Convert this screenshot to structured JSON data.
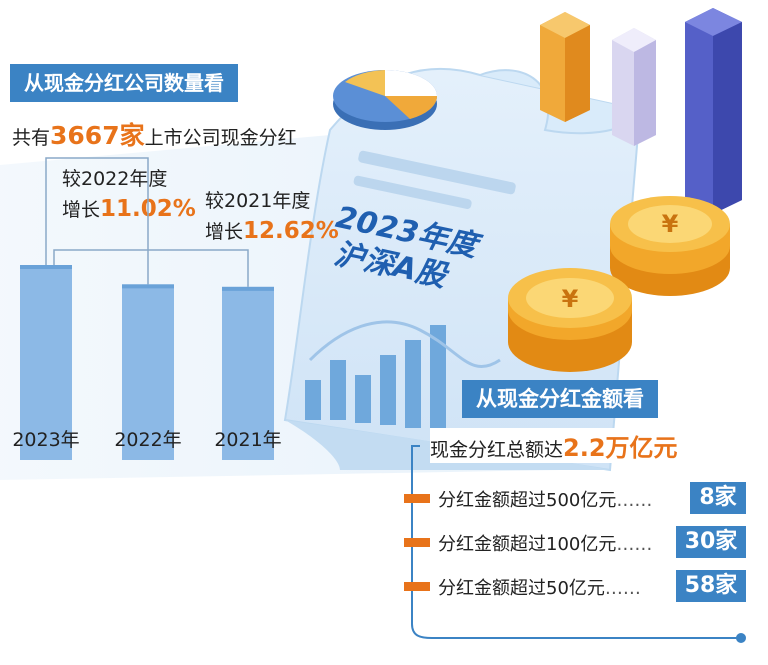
{
  "section1": {
    "title": "从现金分红公司数量看",
    "count_prefix": "共有",
    "count_value": "3667家",
    "count_suffix": "上市公司现金分红",
    "compare_2022_line1": "较2022年度",
    "compare_2022_prefix": "增长",
    "compare_2022_value": "11.02%",
    "compare_2021_line1": "较2021年度",
    "compare_2021_prefix": "增长",
    "compare_2021_value": "12.62%"
  },
  "center": {
    "line1": "2023年度",
    "line2": "沪深A股"
  },
  "chart_data": {
    "type": "bar",
    "categories": [
      "2023年",
      "2022年",
      "2021年"
    ],
    "values": [
      3667,
      3303,
      3256
    ],
    "colors": {
      "bar": "#8cb9e6",
      "bar_top": "#6aa2d8",
      "connector": "#8aa9c8"
    }
  },
  "section2": {
    "title": "从现金分红金额看",
    "total_prefix": "现金分红总额达",
    "total_value": "2.2万亿元",
    "rows": [
      {
        "label": "分红金额超过500亿元",
        "dots": "……",
        "count": "8家"
      },
      {
        "label": "分红金额超过100亿元",
        "dots": "……",
        "count": "30家"
      },
      {
        "label": "分红金额超过50亿元",
        "dots": "……",
        "count": "58家"
      }
    ]
  },
  "decor": {
    "coin_icon": "yen-coin-icon",
    "coin_symbol": "¥",
    "accent": "#3b83c4",
    "orange": "#e8731a"
  }
}
